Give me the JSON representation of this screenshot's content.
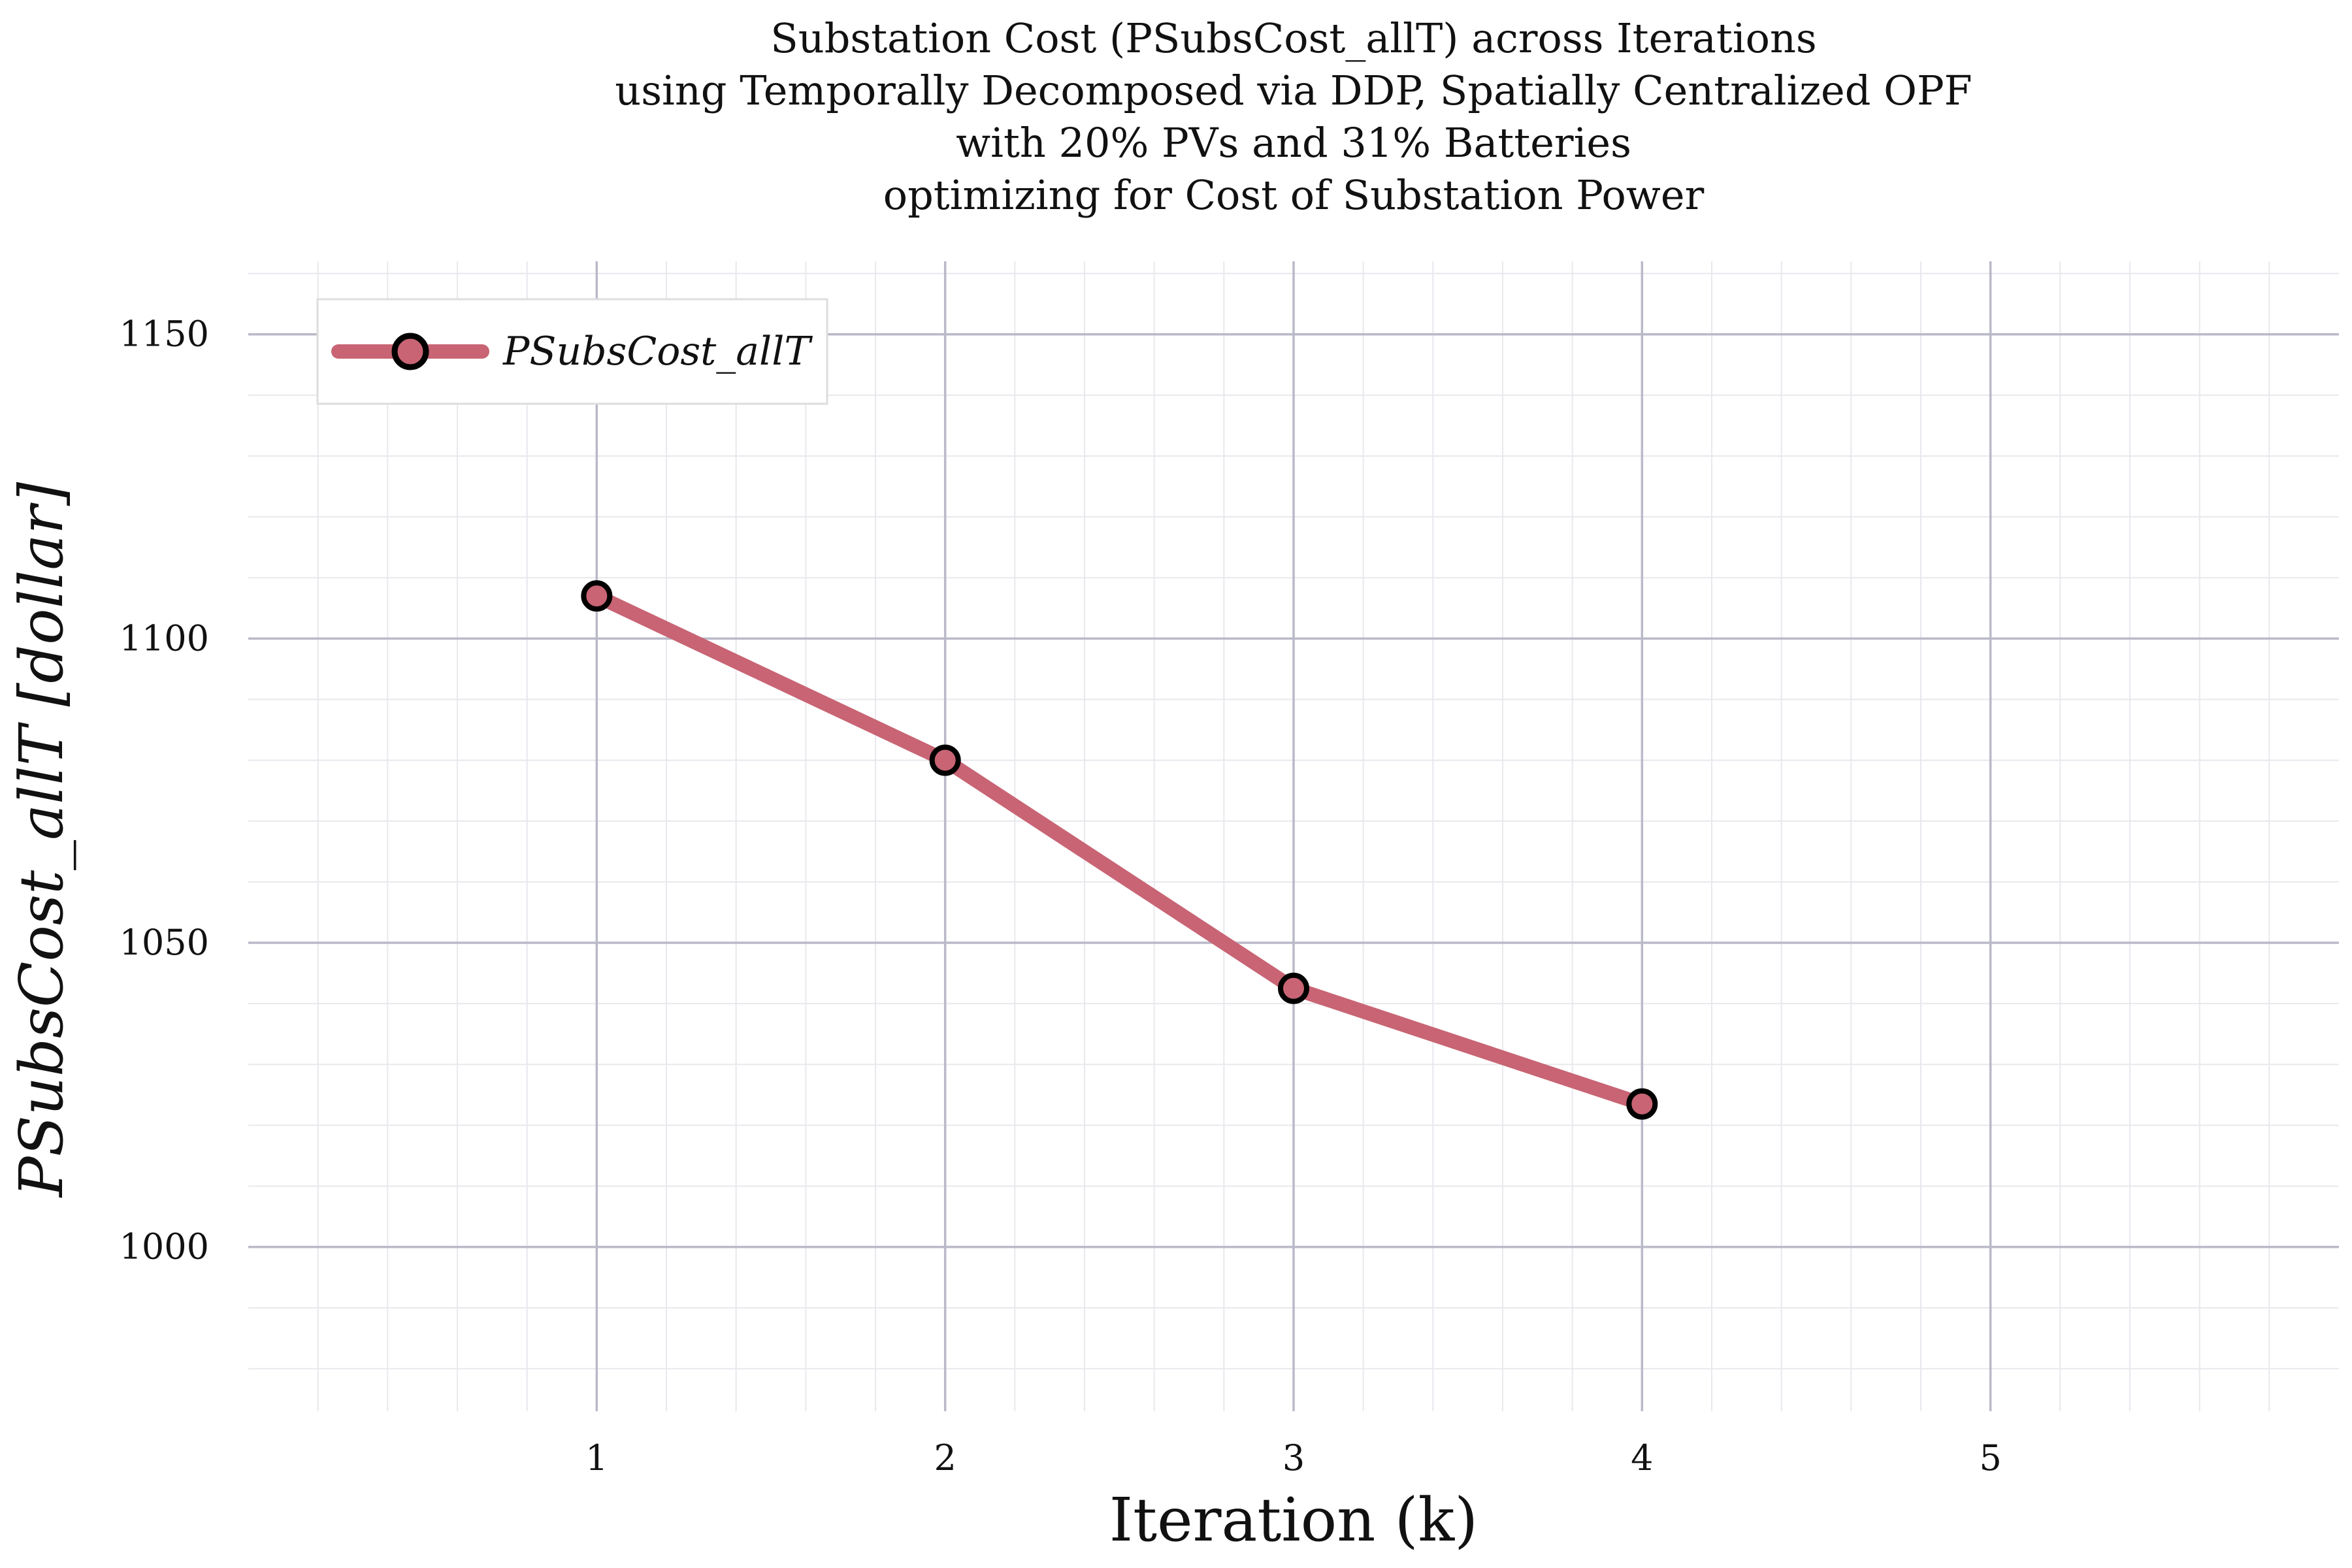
{
  "chart_data": {
    "type": "line",
    "title_lines": [
      "Substation Cost (PSubsCost_allT) across Iterations",
      "using Temporally Decomposed via DDP, Spatially Centralized OPF",
      "with 20% PVs and 31% Batteries",
      "optimizing for Cost of Substation Power"
    ],
    "xlabel": "Iteration (k)",
    "ylabel": "PSubsCost_allT [dollar]",
    "xlim": [
      0,
      6
    ],
    "ylim": [
      973,
      1162
    ],
    "x_ticks": [
      "1",
      "2",
      "3",
      "4",
      "5"
    ],
    "y_ticks": [
      "1000",
      "1050",
      "1100",
      "1150"
    ],
    "grid": true,
    "legend_position": "top-left",
    "series": [
      {
        "name": "PSubsCost_allT",
        "color": "#c86474",
        "x": [
          1,
          2,
          3,
          4
        ],
        "y": [
          1107,
          1080,
          1042.5,
          1023.5
        ]
      }
    ]
  }
}
